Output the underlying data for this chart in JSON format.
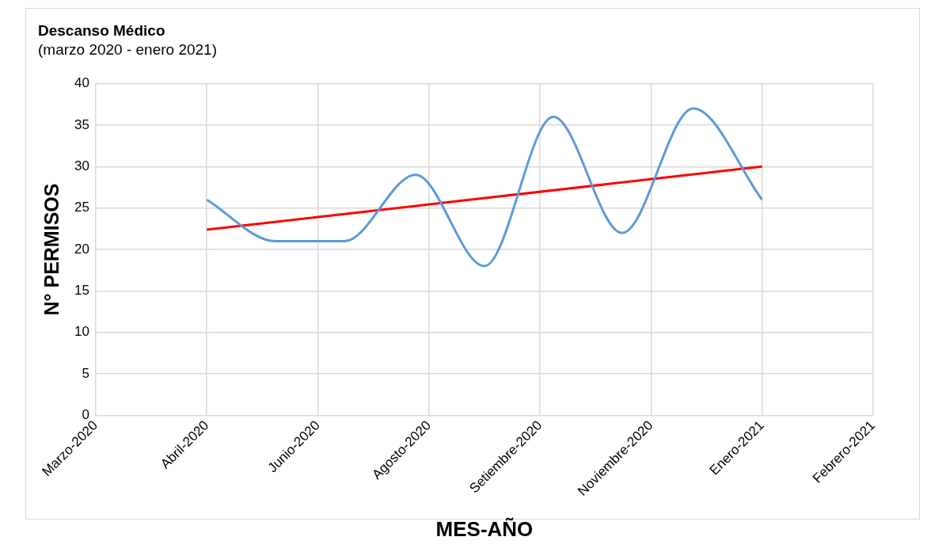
{
  "chart_data": {
    "type": "line",
    "title": "Descanso Médico",
    "subtitle": "(marzo 2020 - enero 2021)",
    "xlabel": "MES-AÑO",
    "ylabel": "N° PERMISOS",
    "x": [
      "2020-04-30",
      "2020-05-31",
      "2020-07-01",
      "2020-08-02",
      "2020-09-02",
      "2020-10-03",
      "2020-11-03",
      "2020-12-05",
      "2021-01-05"
    ],
    "xlim": [
      "2020-03-11",
      "2021-02-24"
    ],
    "xticks": [
      {
        "value": "2020-03-11",
        "label": "Marzo-2020"
      },
      {
        "value": "2020-04-30",
        "label": "Abril-2020"
      },
      {
        "value": "2020-06-19",
        "label": "Junio-2020"
      },
      {
        "value": "2020-08-08",
        "label": "Agosto-2020"
      },
      {
        "value": "2020-09-27",
        "label": "Setiembre-2020"
      },
      {
        "value": "2020-11-16",
        "label": "Noviembre-2020"
      },
      {
        "value": "2021-01-05",
        "label": "Enero-2021"
      },
      {
        "value": "2021-02-24",
        "label": "Febrero-2021"
      }
    ],
    "ylim": [
      0,
      40
    ],
    "yticks": [
      0,
      5,
      10,
      15,
      20,
      25,
      30,
      35,
      40
    ],
    "grid": true,
    "legend": false,
    "marker": "none",
    "line_style": "solid",
    "series": [
      {
        "color": "#5b9bd5",
        "values": [
          26,
          21,
          21,
          29,
          18,
          36,
          22,
          37,
          26
        ]
      },
      {
        "type": "line",
        "color": "#ff0000",
        "x": [
          "2020-04-30",
          "2021-01-05"
        ],
        "values": [
          22.4,
          30
        ]
      }
    ]
  }
}
